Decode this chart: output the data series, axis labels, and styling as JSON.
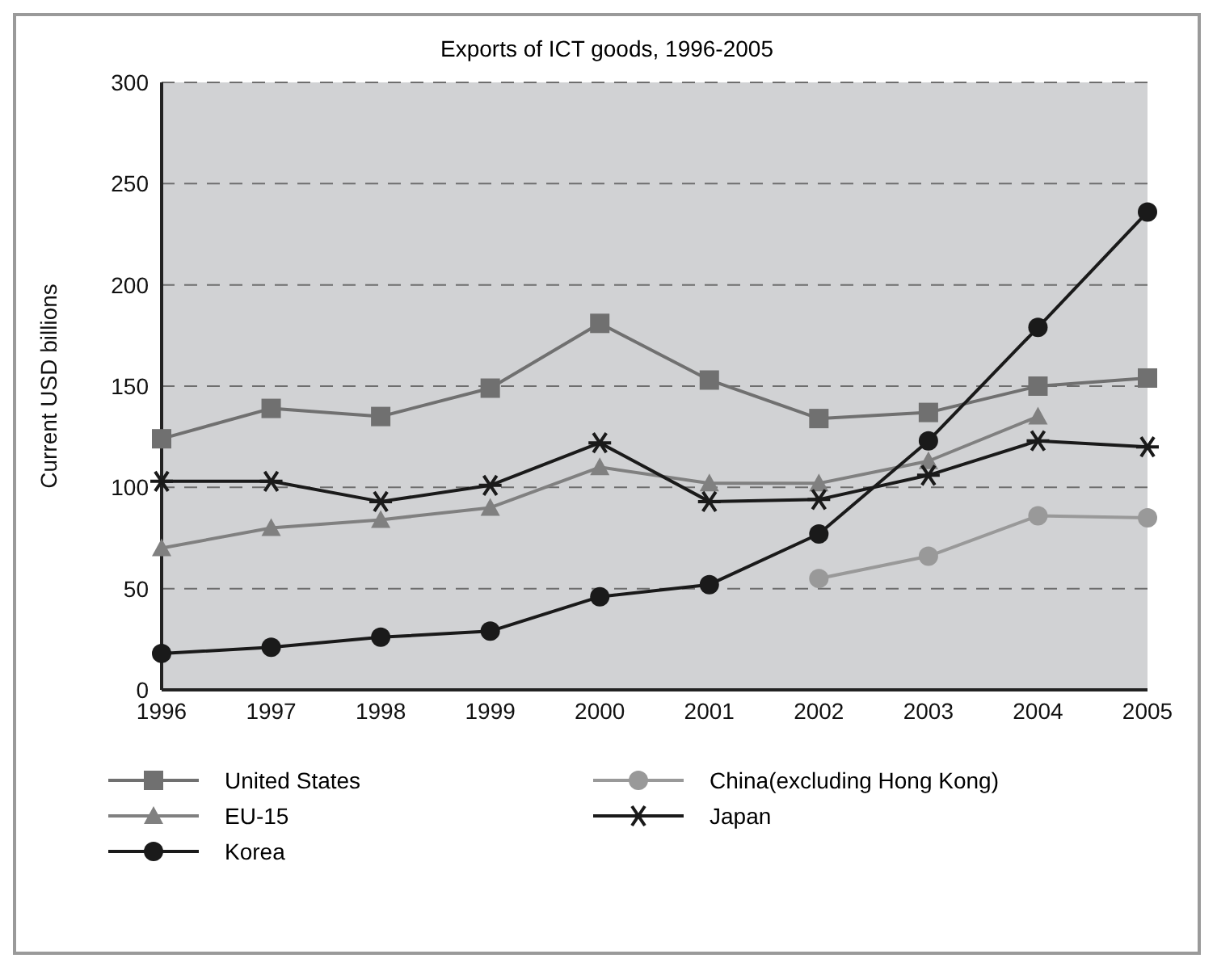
{
  "chart_data": {
    "type": "line",
    "title": "Exports of ICT goods, 1996-2005",
    "ylabel": "Current USD billions",
    "categories": [
      "1996",
      "1997",
      "1998",
      "1999",
      "2000",
      "2001",
      "2002",
      "2003",
      "2004",
      "2005"
    ],
    "series": [
      {
        "name": "United States",
        "color": "#707070",
        "marker": "square",
        "values": [
          124,
          139,
          135,
          149,
          181,
          153,
          134,
          137,
          150,
          154
        ]
      },
      {
        "name": "EU-15",
        "color": "#808080",
        "marker": "triangle",
        "values": [
          70,
          80,
          84,
          90,
          110,
          102,
          102,
          113,
          135,
          null
        ]
      },
      {
        "name": "Korea",
        "color": "#1a1a1a",
        "marker": "circle",
        "values": [
          18,
          21,
          26,
          29,
          46,
          52,
          77,
          123,
          179,
          236
        ]
      },
      {
        "name": "China(excluding Hong Kong)",
        "color": "#999999",
        "marker": "circle",
        "values": [
          null,
          null,
          null,
          null,
          null,
          null,
          55,
          66,
          86,
          85
        ]
      },
      {
        "name": "Japan",
        "color": "#1a1a1a",
        "marker": "cross",
        "values": [
          103,
          103,
          93,
          101,
          122,
          93,
          94,
          106,
          123,
          120
        ]
      }
    ],
    "ylim": [
      0,
      300
    ],
    "yticks": [
      0,
      50,
      100,
      150,
      200,
      250,
      300
    ],
    "grid": "y",
    "legend": "bottom",
    "line_style": "solid"
  }
}
